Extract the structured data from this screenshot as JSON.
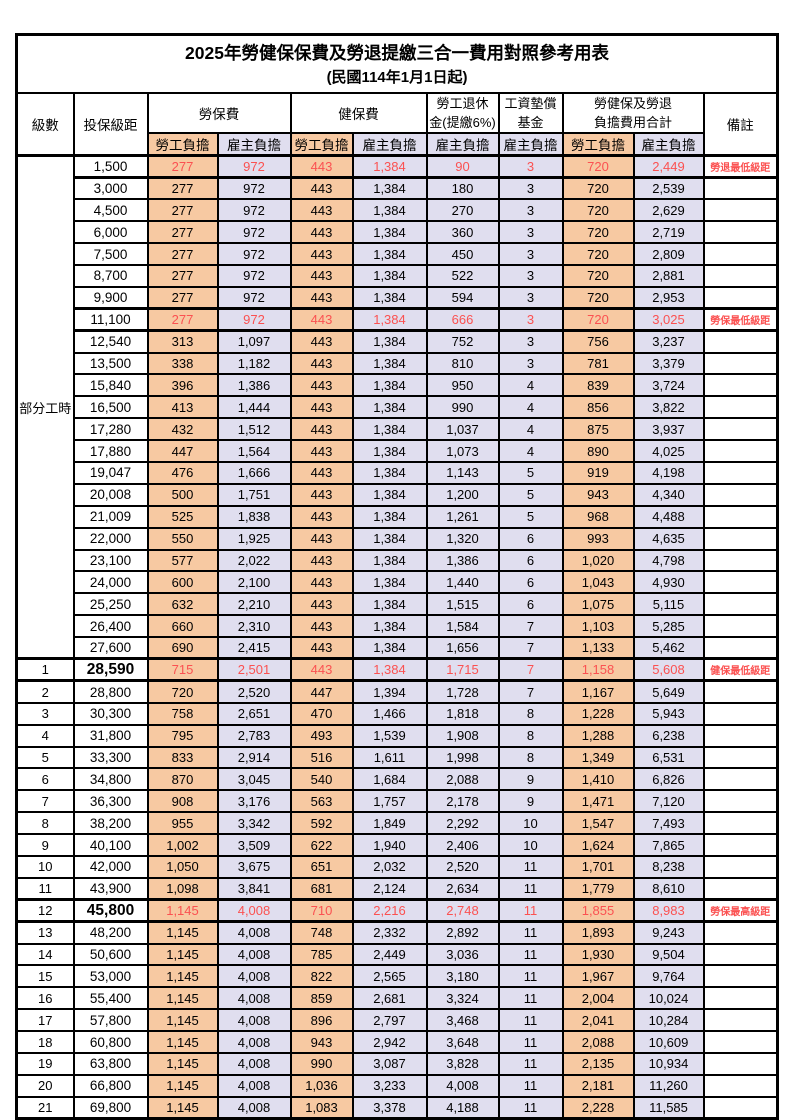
{
  "title": "2025年勞健保保費及勞退提繳三合一費用對照參考用表",
  "subtitle": "(民國114年1月1日起)",
  "header": {
    "level": "級數",
    "bracket": "投保級距",
    "labor_ins": "勞保費",
    "health_ins": "健保費",
    "pension_line1": "勞工退休",
    "pension_line2": "金(提繳6%)",
    "wage_fund_line1": "工資墊償",
    "wage_fund_line2": "基金",
    "total_line1": "勞健保及勞退",
    "total_line2": "負擔費用合計",
    "remark": "備註",
    "employee_share": "勞工負擔",
    "employer_share": "雇主負擔"
  },
  "part_time_label": "部分工時",
  "part_time_rowspan": 23,
  "colors": {
    "employee_bg": "#F7C9A2",
    "employer_bg": "#E0DEEF",
    "red": "#FB5151"
  },
  "rows": [
    {
      "level": "",
      "bracket": "1,500",
      "values": [
        "277",
        "972",
        "443",
        "1,384",
        "90",
        "3",
        "720",
        "2,449"
      ],
      "remark": "勞退最低級距",
      "highlight": true,
      "big_bracket": false
    },
    {
      "level": "",
      "bracket": "3,000",
      "values": [
        "277",
        "972",
        "443",
        "1,384",
        "180",
        "3",
        "720",
        "2,539"
      ],
      "remark": "",
      "highlight": false,
      "big_bracket": false
    },
    {
      "level": "",
      "bracket": "4,500",
      "values": [
        "277",
        "972",
        "443",
        "1,384",
        "270",
        "3",
        "720",
        "2,629"
      ],
      "remark": "",
      "highlight": false,
      "big_bracket": false
    },
    {
      "level": "",
      "bracket": "6,000",
      "values": [
        "277",
        "972",
        "443",
        "1,384",
        "360",
        "3",
        "720",
        "2,719"
      ],
      "remark": "",
      "highlight": false,
      "big_bracket": false
    },
    {
      "level": "",
      "bracket": "7,500",
      "values": [
        "277",
        "972",
        "443",
        "1,384",
        "450",
        "3",
        "720",
        "2,809"
      ],
      "remark": "",
      "highlight": false,
      "big_bracket": false
    },
    {
      "level": "",
      "bracket": "8,700",
      "values": [
        "277",
        "972",
        "443",
        "1,384",
        "522",
        "3",
        "720",
        "2,881"
      ],
      "remark": "",
      "highlight": false,
      "big_bracket": false
    },
    {
      "level": "",
      "bracket": "9,900",
      "values": [
        "277",
        "972",
        "443",
        "1,384",
        "594",
        "3",
        "720",
        "2,953"
      ],
      "remark": "",
      "highlight": false,
      "big_bracket": false
    },
    {
      "level": "",
      "bracket": "11,100",
      "values": [
        "277",
        "972",
        "443",
        "1,384",
        "666",
        "3",
        "720",
        "3,025"
      ],
      "remark": "勞保最低級距",
      "highlight": true,
      "big_bracket": false
    },
    {
      "level": "",
      "bracket": "12,540",
      "values": [
        "313",
        "1,097",
        "443",
        "1,384",
        "752",
        "3",
        "756",
        "3,237"
      ],
      "remark": "",
      "highlight": false,
      "big_bracket": false
    },
    {
      "level": "",
      "bracket": "13,500",
      "values": [
        "338",
        "1,182",
        "443",
        "1,384",
        "810",
        "3",
        "781",
        "3,379"
      ],
      "remark": "",
      "highlight": false,
      "big_bracket": false
    },
    {
      "level": "",
      "bracket": "15,840",
      "values": [
        "396",
        "1,386",
        "443",
        "1,384",
        "950",
        "4",
        "839",
        "3,724"
      ],
      "remark": "",
      "highlight": false,
      "big_bracket": false
    },
    {
      "level": "",
      "bracket": "16,500",
      "values": [
        "413",
        "1,444",
        "443",
        "1,384",
        "990",
        "4",
        "856",
        "3,822"
      ],
      "remark": "",
      "highlight": false,
      "big_bracket": false
    },
    {
      "level": "",
      "bracket": "17,280",
      "values": [
        "432",
        "1,512",
        "443",
        "1,384",
        "1,037",
        "4",
        "875",
        "3,937"
      ],
      "remark": "",
      "highlight": false,
      "big_bracket": false
    },
    {
      "level": "",
      "bracket": "17,880",
      "values": [
        "447",
        "1,564",
        "443",
        "1,384",
        "1,073",
        "4",
        "890",
        "4,025"
      ],
      "remark": "",
      "highlight": false,
      "big_bracket": false
    },
    {
      "level": "",
      "bracket": "19,047",
      "values": [
        "476",
        "1,666",
        "443",
        "1,384",
        "1,143",
        "5",
        "919",
        "4,198"
      ],
      "remark": "",
      "highlight": false,
      "big_bracket": false
    },
    {
      "level": "",
      "bracket": "20,008",
      "values": [
        "500",
        "1,751",
        "443",
        "1,384",
        "1,200",
        "5",
        "943",
        "4,340"
      ],
      "remark": "",
      "highlight": false,
      "big_bracket": false
    },
    {
      "level": "",
      "bracket": "21,009",
      "values": [
        "525",
        "1,838",
        "443",
        "1,384",
        "1,261",
        "5",
        "968",
        "4,488"
      ],
      "remark": "",
      "highlight": false,
      "big_bracket": false
    },
    {
      "level": "",
      "bracket": "22,000",
      "values": [
        "550",
        "1,925",
        "443",
        "1,384",
        "1,320",
        "6",
        "993",
        "4,635"
      ],
      "remark": "",
      "highlight": false,
      "big_bracket": false
    },
    {
      "level": "",
      "bracket": "23,100",
      "values": [
        "577",
        "2,022",
        "443",
        "1,384",
        "1,386",
        "6",
        "1,020",
        "4,798"
      ],
      "remark": "",
      "highlight": false,
      "big_bracket": false
    },
    {
      "level": "",
      "bracket": "24,000",
      "values": [
        "600",
        "2,100",
        "443",
        "1,384",
        "1,440",
        "6",
        "1,043",
        "4,930"
      ],
      "remark": "",
      "highlight": false,
      "big_bracket": false
    },
    {
      "level": "",
      "bracket": "25,250",
      "values": [
        "632",
        "2,210",
        "443",
        "1,384",
        "1,515",
        "6",
        "1,075",
        "5,115"
      ],
      "remark": "",
      "highlight": false,
      "big_bracket": false
    },
    {
      "level": "",
      "bracket": "26,400",
      "values": [
        "660",
        "2,310",
        "443",
        "1,384",
        "1,584",
        "7",
        "1,103",
        "5,285"
      ],
      "remark": "",
      "highlight": false,
      "big_bracket": false
    },
    {
      "level": "",
      "bracket": "27,600",
      "values": [
        "690",
        "2,415",
        "443",
        "1,384",
        "1,656",
        "7",
        "1,133",
        "5,462"
      ],
      "remark": "",
      "highlight": false,
      "big_bracket": false
    },
    {
      "level": "1",
      "bracket": "28,590",
      "values": [
        "715",
        "2,501",
        "443",
        "1,384",
        "1,715",
        "7",
        "1,158",
        "5,608"
      ],
      "remark": "健保最低級距",
      "highlight": true,
      "big_bracket": true
    },
    {
      "level": "2",
      "bracket": "28,800",
      "values": [
        "720",
        "2,520",
        "447",
        "1,394",
        "1,728",
        "7",
        "1,167",
        "5,649"
      ],
      "remark": "",
      "highlight": false,
      "big_bracket": false
    },
    {
      "level": "3",
      "bracket": "30,300",
      "values": [
        "758",
        "2,651",
        "470",
        "1,466",
        "1,818",
        "8",
        "1,228",
        "5,943"
      ],
      "remark": "",
      "highlight": false,
      "big_bracket": false
    },
    {
      "level": "4",
      "bracket": "31,800",
      "values": [
        "795",
        "2,783",
        "493",
        "1,539",
        "1,908",
        "8",
        "1,288",
        "6,238"
      ],
      "remark": "",
      "highlight": false,
      "big_bracket": false
    },
    {
      "level": "5",
      "bracket": "33,300",
      "values": [
        "833",
        "2,914",
        "516",
        "1,611",
        "1,998",
        "8",
        "1,349",
        "6,531"
      ],
      "remark": "",
      "highlight": false,
      "big_bracket": false
    },
    {
      "level": "6",
      "bracket": "34,800",
      "values": [
        "870",
        "3,045",
        "540",
        "1,684",
        "2,088",
        "9",
        "1,410",
        "6,826"
      ],
      "remark": "",
      "highlight": false,
      "big_bracket": false
    },
    {
      "level": "7",
      "bracket": "36,300",
      "values": [
        "908",
        "3,176",
        "563",
        "1,757",
        "2,178",
        "9",
        "1,471",
        "7,120"
      ],
      "remark": "",
      "highlight": false,
      "big_bracket": false
    },
    {
      "level": "8",
      "bracket": "38,200",
      "values": [
        "955",
        "3,342",
        "592",
        "1,849",
        "2,292",
        "10",
        "1,547",
        "7,493"
      ],
      "remark": "",
      "highlight": false,
      "big_bracket": false
    },
    {
      "level": "9",
      "bracket": "40,100",
      "values": [
        "1,002",
        "3,509",
        "622",
        "1,940",
        "2,406",
        "10",
        "1,624",
        "7,865"
      ],
      "remark": "",
      "highlight": false,
      "big_bracket": false
    },
    {
      "level": "10",
      "bracket": "42,000",
      "values": [
        "1,050",
        "3,675",
        "651",
        "2,032",
        "2,520",
        "11",
        "1,701",
        "8,238"
      ],
      "remark": "",
      "highlight": false,
      "big_bracket": false
    },
    {
      "level": "11",
      "bracket": "43,900",
      "values": [
        "1,098",
        "3,841",
        "681",
        "2,124",
        "2,634",
        "11",
        "1,779",
        "8,610"
      ],
      "remark": "",
      "highlight": false,
      "big_bracket": false
    },
    {
      "level": "12",
      "bracket": "45,800",
      "values": [
        "1,145",
        "4,008",
        "710",
        "2,216",
        "2,748",
        "11",
        "1,855",
        "8,983"
      ],
      "remark": "勞保最高級距",
      "highlight": true,
      "big_bracket": true
    },
    {
      "level": "13",
      "bracket": "48,200",
      "values": [
        "1,145",
        "4,008",
        "748",
        "2,332",
        "2,892",
        "11",
        "1,893",
        "9,243"
      ],
      "remark": "",
      "highlight": false,
      "big_bracket": false
    },
    {
      "level": "14",
      "bracket": "50,600",
      "values": [
        "1,145",
        "4,008",
        "785",
        "2,449",
        "3,036",
        "11",
        "1,930",
        "9,504"
      ],
      "remark": "",
      "highlight": false,
      "big_bracket": false
    },
    {
      "level": "15",
      "bracket": "53,000",
      "values": [
        "1,145",
        "4,008",
        "822",
        "2,565",
        "3,180",
        "11",
        "1,967",
        "9,764"
      ],
      "remark": "",
      "highlight": false,
      "big_bracket": false
    },
    {
      "level": "16",
      "bracket": "55,400",
      "values": [
        "1,145",
        "4,008",
        "859",
        "2,681",
        "3,324",
        "11",
        "2,004",
        "10,024"
      ],
      "remark": "",
      "highlight": false,
      "big_bracket": false
    },
    {
      "level": "17",
      "bracket": "57,800",
      "values": [
        "1,145",
        "4,008",
        "896",
        "2,797",
        "3,468",
        "11",
        "2,041",
        "10,284"
      ],
      "remark": "",
      "highlight": false,
      "big_bracket": false
    },
    {
      "level": "18",
      "bracket": "60,800",
      "values": [
        "1,145",
        "4,008",
        "943",
        "2,942",
        "3,648",
        "11",
        "2,088",
        "10,609"
      ],
      "remark": "",
      "highlight": false,
      "big_bracket": false
    },
    {
      "level": "19",
      "bracket": "63,800",
      "values": [
        "1,145",
        "4,008",
        "990",
        "3,087",
        "3,828",
        "11",
        "2,135",
        "10,934"
      ],
      "remark": "",
      "highlight": false,
      "big_bracket": false
    },
    {
      "level": "20",
      "bracket": "66,800",
      "values": [
        "1,145",
        "4,008",
        "1,036",
        "3,233",
        "4,008",
        "11",
        "2,181",
        "11,260"
      ],
      "remark": "",
      "highlight": false,
      "big_bracket": false
    },
    {
      "level": "21",
      "bracket": "69,800",
      "values": [
        "1,145",
        "4,008",
        "1,083",
        "3,378",
        "4,188",
        "11",
        "2,228",
        "11,585"
      ],
      "remark": "",
      "highlight": false,
      "big_bracket": false
    }
  ]
}
